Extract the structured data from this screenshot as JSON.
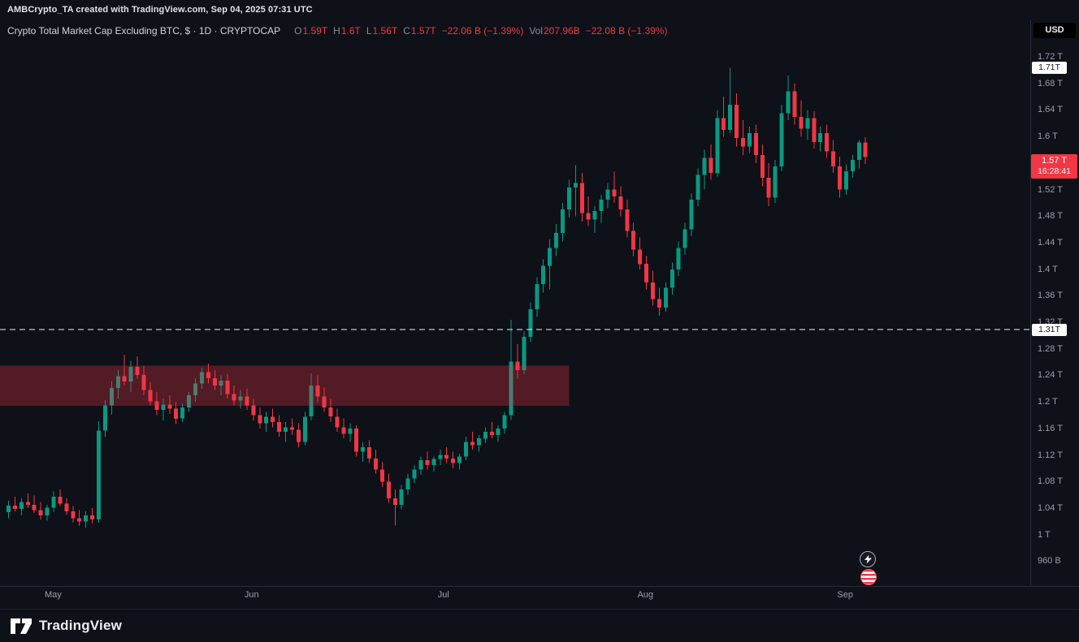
{
  "header": {
    "attribution": "AMBCrypto_TA created with TradingView.com, Sep 04, 2025 07:31 UTC",
    "symbol_title": "Crypto Total Market Cap Excluding BTC, $ · 1D · CRYPTOCAP",
    "ohlc": {
      "o_label": "O",
      "o_value": "1.59T",
      "h_label": "H",
      "h_value": "1.6T",
      "l_label": "L",
      "l_value": "1.56T",
      "c_label": "C",
      "c_value": "1.57T",
      "change": "−22.06 B (−1.39%)"
    },
    "volume": {
      "label": "Vol",
      "value": "207.96B",
      "change": "−22.08 B (−1.39%)"
    },
    "currency_button": "USD"
  },
  "footer": {
    "wordmark": "TradingView"
  },
  "colors": {
    "up": "#089981",
    "down": "#f23645",
    "zone": "rgba(242,54,69,0.30)",
    "dashed_line": "#eef1f6"
  },
  "chart_data": {
    "type": "candlestick",
    "title": "Crypto Total Market Cap Excluding BTC",
    "interval": "1D",
    "source": "CRYPTOCAP",
    "unit": "USD trillions",
    "x_axis": {
      "months": [
        {
          "label": "May",
          "index": 7
        },
        {
          "label": "Jun",
          "index": 38
        },
        {
          "label": "Jul",
          "index": 68
        },
        {
          "label": "Aug",
          "index": 99
        },
        {
          "label": "Sep",
          "index": 130
        }
      ]
    },
    "y_axis": {
      "range": [
        0.93,
        1.76
      ],
      "ticks": [
        {
          "label": "1.72 T",
          "value": 1.72
        },
        {
          "label": "1.68 T",
          "value": 1.68
        },
        {
          "label": "1.64 T",
          "value": 1.64
        },
        {
          "label": "1.6 T",
          "value": 1.6
        },
        {
          "label": "1.52 T",
          "value": 1.52
        },
        {
          "label": "1.48 T",
          "value": 1.48
        },
        {
          "label": "1.44 T",
          "value": 1.44
        },
        {
          "label": "1.4 T",
          "value": 1.4
        },
        {
          "label": "1.36 T",
          "value": 1.36
        },
        {
          "label": "1.32 T",
          "value": 1.32
        },
        {
          "label": "1.28 T",
          "value": 1.28
        },
        {
          "label": "1.24 T",
          "value": 1.24
        },
        {
          "label": "1.2 T",
          "value": 1.2
        },
        {
          "label": "1.16 T",
          "value": 1.16
        },
        {
          "label": "1.12 T",
          "value": 1.12
        },
        {
          "label": "1.08 T",
          "value": 1.08
        },
        {
          "label": "1.04 T",
          "value": 1.04
        },
        {
          "label": "1 T",
          "value": 1.0
        },
        {
          "label": "960 B",
          "value": 0.96
        }
      ]
    },
    "levels": {
      "high_label": {
        "label": "1.71T",
        "value": 1.705
      },
      "dashed_level": {
        "label": "1.31T",
        "value": 1.31
      },
      "current": {
        "label": "1.57 T",
        "countdown": "16:28:41",
        "value": 1.57
      }
    },
    "supply_zone": {
      "price_from": 1.195,
      "price_to": 1.256,
      "end_index": 87
    },
    "candles": [
      [
        1.035,
        1.052,
        1.026,
        1.045
      ],
      [
        1.045,
        1.058,
        1.036,
        1.04
      ],
      [
        1.04,
        1.056,
        1.03,
        1.05
      ],
      [
        1.05,
        1.063,
        1.041,
        1.046
      ],
      [
        1.046,
        1.06,
        1.034,
        1.038
      ],
      [
        1.038,
        1.05,
        1.024,
        1.03
      ],
      [
        1.03,
        1.046,
        1.022,
        1.042
      ],
      [
        1.042,
        1.066,
        1.035,
        1.058
      ],
      [
        1.058,
        1.069,
        1.044,
        1.048
      ],
      [
        1.048,
        1.056,
        1.031,
        1.036
      ],
      [
        1.036,
        1.044,
        1.019,
        1.026
      ],
      [
        1.026,
        1.038,
        1.014,
        1.021
      ],
      [
        1.021,
        1.036,
        1.011,
        1.03
      ],
      [
        1.03,
        1.041,
        1.018,
        1.024
      ],
      [
        1.024,
        1.172,
        1.019,
        1.158
      ],
      [
        1.158,
        1.204,
        1.148,
        1.196
      ],
      [
        1.196,
        1.232,
        1.182,
        1.222
      ],
      [
        1.222,
        1.249,
        1.206,
        1.24
      ],
      [
        1.24,
        1.272,
        1.226,
        1.232
      ],
      [
        1.232,
        1.263,
        1.216,
        1.254
      ],
      [
        1.254,
        1.27,
        1.236,
        1.242
      ],
      [
        1.242,
        1.256,
        1.211,
        1.219
      ],
      [
        1.219,
        1.231,
        1.196,
        1.202
      ],
      [
        1.202,
        1.216,
        1.181,
        1.189
      ],
      [
        1.189,
        1.206,
        1.173,
        1.197
      ],
      [
        1.197,
        1.211,
        1.183,
        1.191
      ],
      [
        1.191,
        1.201,
        1.168,
        1.176
      ],
      [
        1.176,
        1.199,
        1.171,
        1.193
      ],
      [
        1.193,
        1.216,
        1.186,
        1.211
      ],
      [
        1.211,
        1.237,
        1.202,
        1.229
      ],
      [
        1.229,
        1.253,
        1.221,
        1.246
      ],
      [
        1.246,
        1.259,
        1.229,
        1.237
      ],
      [
        1.237,
        1.249,
        1.219,
        1.226
      ],
      [
        1.226,
        1.241,
        1.211,
        1.233
      ],
      [
        1.233,
        1.243,
        1.206,
        1.213
      ],
      [
        1.213,
        1.226,
        1.196,
        1.203
      ],
      [
        1.203,
        1.219,
        1.191,
        1.209
      ],
      [
        1.209,
        1.221,
        1.189,
        1.196
      ],
      [
        1.196,
        1.206,
        1.173,
        1.181
      ],
      [
        1.181,
        1.193,
        1.161,
        1.169
      ],
      [
        1.169,
        1.186,
        1.156,
        1.179
      ],
      [
        1.179,
        1.191,
        1.163,
        1.171
      ],
      [
        1.171,
        1.181,
        1.149,
        1.156
      ],
      [
        1.156,
        1.171,
        1.141,
        1.163
      ],
      [
        1.163,
        1.176,
        1.151,
        1.159
      ],
      [
        1.159,
        1.169,
        1.133,
        1.141
      ],
      [
        1.141,
        1.186,
        1.136,
        1.179
      ],
      [
        1.179,
        1.244,
        1.173,
        1.226
      ],
      [
        1.226,
        1.241,
        1.201,
        1.209
      ],
      [
        1.209,
        1.223,
        1.186,
        1.193
      ],
      [
        1.193,
        1.206,
        1.171,
        1.179
      ],
      [
        1.179,
        1.191,
        1.156,
        1.163
      ],
      [
        1.163,
        1.176,
        1.146,
        1.153
      ],
      [
        1.153,
        1.169,
        1.141,
        1.161
      ],
      [
        1.161,
        1.166,
        1.119,
        1.126
      ],
      [
        1.126,
        1.141,
        1.111,
        1.133
      ],
      [
        1.133,
        1.143,
        1.109,
        1.116
      ],
      [
        1.116,
        1.129,
        1.093,
        1.099
      ],
      [
        1.099,
        1.111,
        1.073,
        1.081
      ],
      [
        1.081,
        1.093,
        1.049,
        1.056
      ],
      [
        1.056,
        1.069,
        1.015,
        1.046
      ],
      [
        1.046,
        1.076,
        1.039,
        1.069
      ],
      [
        1.069,
        1.093,
        1.061,
        1.086
      ],
      [
        1.086,
        1.106,
        1.079,
        1.099
      ],
      [
        1.099,
        1.119,
        1.091,
        1.113
      ],
      [
        1.113,
        1.126,
        1.099,
        1.106
      ],
      [
        1.106,
        1.119,
        1.096,
        1.115
      ],
      [
        1.115,
        1.129,
        1.106,
        1.121
      ],
      [
        1.121,
        1.133,
        1.109,
        1.116
      ],
      [
        1.116,
        1.126,
        1.101,
        1.109
      ],
      [
        1.109,
        1.123,
        1.099,
        1.119
      ],
      [
        1.119,
        1.149,
        1.113,
        1.141
      ],
      [
        1.141,
        1.156,
        1.129,
        1.136
      ],
      [
        1.136,
        1.151,
        1.126,
        1.146
      ],
      [
        1.146,
        1.163,
        1.139,
        1.156
      ],
      [
        1.156,
        1.171,
        1.146,
        1.151
      ],
      [
        1.151,
        1.166,
        1.141,
        1.161
      ],
      [
        1.161,
        1.186,
        1.153,
        1.181
      ],
      [
        1.181,
        1.325,
        1.174,
        1.262
      ],
      [
        1.262,
        1.288,
        1.236,
        1.249
      ],
      [
        1.249,
        1.308,
        1.243,
        1.299
      ],
      [
        1.299,
        1.351,
        1.291,
        1.341
      ],
      [
        1.341,
        1.389,
        1.329,
        1.379
      ],
      [
        1.379,
        1.416,
        1.366,
        1.406
      ],
      [
        1.406,
        1.446,
        1.371,
        1.433
      ],
      [
        1.433,
        1.469,
        1.421,
        1.456
      ],
      [
        1.456,
        1.501,
        1.443,
        1.491
      ],
      [
        1.491,
        1.536,
        1.479,
        1.524
      ],
      [
        1.524,
        1.558,
        1.481,
        1.531
      ],
      [
        1.531,
        1.546,
        1.473,
        1.486
      ],
      [
        1.486,
        1.511,
        1.466,
        1.476
      ],
      [
        1.476,
        1.496,
        1.456,
        1.489
      ],
      [
        1.489,
        1.513,
        1.471,
        1.506
      ],
      [
        1.506,
        1.531,
        1.493,
        1.521
      ],
      [
        1.521,
        1.548,
        1.501,
        1.511
      ],
      [
        1.511,
        1.526,
        1.481,
        1.491
      ],
      [
        1.491,
        1.506,
        1.449,
        1.459
      ],
      [
        1.459,
        1.471,
        1.421,
        1.431
      ],
      [
        1.431,
        1.449,
        1.401,
        1.409
      ],
      [
        1.409,
        1.421,
        1.371,
        1.381
      ],
      [
        1.381,
        1.399,
        1.346,
        1.356
      ],
      [
        1.356,
        1.373,
        1.331,
        1.343
      ],
      [
        1.343,
        1.381,
        1.337,
        1.373
      ],
      [
        1.373,
        1.411,
        1.363,
        1.401
      ],
      [
        1.401,
        1.443,
        1.391,
        1.433
      ],
      [
        1.433,
        1.471,
        1.423,
        1.461
      ],
      [
        1.461,
        1.516,
        1.451,
        1.506
      ],
      [
        1.506,
        1.553,
        1.496,
        1.543
      ],
      [
        1.543,
        1.581,
        1.521,
        1.569
      ],
      [
        1.569,
        1.589,
        1.536,
        1.546
      ],
      [
        1.546,
        1.641,
        1.541,
        1.629
      ],
      [
        1.629,
        1.661,
        1.601,
        1.611
      ],
      [
        1.611,
        1.705,
        1.606,
        1.649
      ],
      [
        1.649,
        1.666,
        1.586,
        1.599
      ],
      [
        1.599,
        1.626,
        1.573,
        1.586
      ],
      [
        1.586,
        1.616,
        1.576,
        1.606
      ],
      [
        1.606,
        1.619,
        1.561,
        1.573
      ],
      [
        1.573,
        1.589,
        1.526,
        1.539
      ],
      [
        1.539,
        1.561,
        1.496,
        1.509
      ],
      [
        1.509,
        1.566,
        1.501,
        1.556
      ],
      [
        1.556,
        1.649,
        1.549,
        1.636
      ],
      [
        1.636,
        1.693,
        1.626,
        1.669
      ],
      [
        1.669,
        1.681,
        1.619,
        1.631
      ],
      [
        1.631,
        1.656,
        1.601,
        1.613
      ],
      [
        1.613,
        1.641,
        1.596,
        1.629
      ],
      [
        1.629,
        1.639,
        1.583,
        1.593
      ],
      [
        1.593,
        1.616,
        1.579,
        1.606
      ],
      [
        1.606,
        1.619,
        1.569,
        1.579
      ],
      [
        1.579,
        1.596,
        1.546,
        1.556
      ],
      [
        1.556,
        1.571,
        1.509,
        1.521
      ],
      [
        1.521,
        1.559,
        1.513,
        1.549
      ],
      [
        1.549,
        1.573,
        1.539,
        1.566
      ],
      [
        1.566,
        1.596,
        1.553,
        1.592
      ],
      [
        1.592,
        1.6,
        1.56,
        1.57
      ]
    ]
  }
}
